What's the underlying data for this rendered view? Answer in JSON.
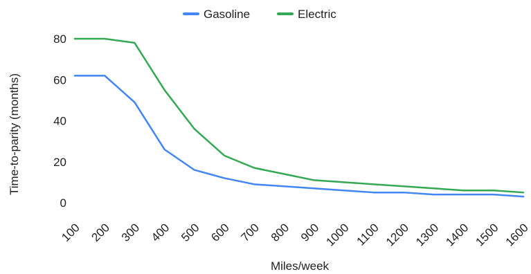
{
  "chart_data": {
    "type": "line",
    "title": "",
    "xlabel": "Miles/week",
    "ylabel": "Time-to-parity (months)",
    "x": [
      100,
      200,
      300,
      400,
      500,
      600,
      700,
      800,
      900,
      1000,
      1100,
      1200,
      1300,
      1400,
      1500,
      1600
    ],
    "x_tick_labels": [
      "100",
      "200",
      "300",
      "400",
      "500",
      "600",
      "700",
      "800",
      "900",
      "1000",
      "1100",
      "1200",
      "1300",
      "1400",
      "1500",
      "1600"
    ],
    "ylim": [
      0,
      80
    ],
    "y_ticks": [
      0,
      20,
      40,
      60,
      80
    ],
    "y_tick_labels": [
      "0",
      "20",
      "40",
      "60",
      "80"
    ],
    "grid": false,
    "legend_position": "top",
    "series": [
      {
        "name": "Gasoline",
        "color": "#4285f4",
        "values": [
          62,
          62,
          49,
          26,
          16,
          12,
          9,
          8,
          7,
          6,
          5,
          5,
          4,
          4,
          4,
          3
        ]
      },
      {
        "name": "Electric",
        "color": "#34a853",
        "values": [
          80,
          80,
          78,
          55,
          36,
          23,
          17,
          14,
          11,
          10,
          9,
          8,
          7,
          6,
          6,
          5
        ]
      }
    ]
  }
}
